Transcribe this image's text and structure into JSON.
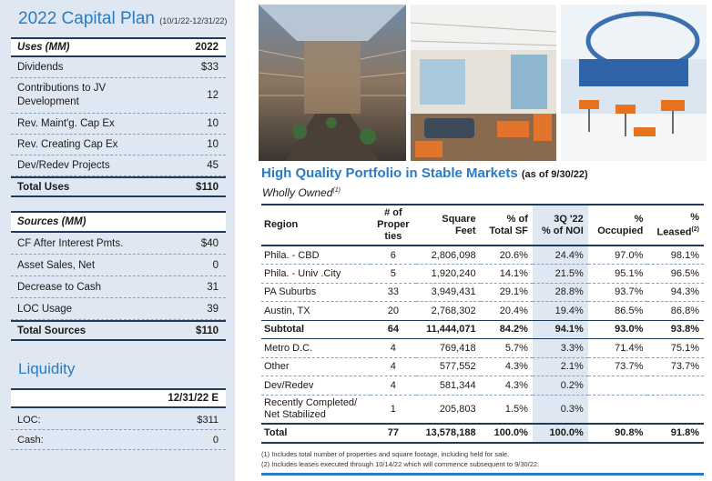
{
  "capital_plan": {
    "title": "2022 Capital Plan",
    "date_range": "(10/1/22-12/31/22)",
    "uses_header": {
      "label": "Uses (MM)",
      "year": "2022"
    },
    "uses": [
      {
        "label": "Dividends",
        "value": "$33"
      },
      {
        "label": "Contributions to JV Development",
        "value": "12"
      },
      {
        "label": "Rev. Maint'g. Cap Ex",
        "value": "10"
      },
      {
        "label": "Rev. Creating Cap Ex",
        "value": "10"
      },
      {
        "label": "Dev/Redev Projects",
        "value": "45"
      }
    ],
    "uses_total": {
      "label": "Total Uses",
      "value": "$110"
    },
    "sources_header": {
      "label": "Sources (MM)"
    },
    "sources": [
      {
        "label": "CF After Interest Pmts.",
        "value": "$40"
      },
      {
        "label": "Asset Sales, Net",
        "value": "0"
      },
      {
        "label": "Decrease to Cash",
        "value": "31"
      },
      {
        "label": "LOC Usage",
        "value": "39"
      }
    ],
    "sources_total": {
      "label": "Total Sources",
      "value": "$110"
    }
  },
  "liquidity": {
    "title": "Liquidity",
    "date": "12/31/22 E",
    "rows": [
      {
        "label": "LOC:",
        "value": "$311"
      },
      {
        "label": "Cash:",
        "value": "0"
      }
    ]
  },
  "portfolio": {
    "title": "High Quality Portfolio in Stable Markets",
    "as_of": "(as of 9/30/22)",
    "subtitle": "Wholly Owned",
    "subtitle_note": "(1)",
    "headers": {
      "region": "Region",
      "props_1": "# of",
      "props_2": "Proper",
      "props_3": "ties",
      "sqft_1": "Square",
      "sqft_2": "Feet",
      "pct_sf_1": "% of",
      "pct_sf_2": "Total SF",
      "noi_1": "3Q '22",
      "noi_2": "% of NOI",
      "occ_1": "%",
      "occ_2": "Occupied",
      "leased_1": "%",
      "leased_2": "Leased",
      "leased_note": "(2)"
    },
    "rows": [
      {
        "region": "Phila. - CBD",
        "props": "6",
        "sqft": "2,806,098",
        "pct_sf": "20.6%",
        "noi": "24.4%",
        "occ": "97.0%",
        "leased": "98.1%"
      },
      {
        "region": "Phila. - Univ .City",
        "props": "5",
        "sqft": "1,920,240",
        "pct_sf": "14.1%",
        "noi": "21.5%",
        "occ": "95.1%",
        "leased": "96.5%"
      },
      {
        "region": "PA Suburbs",
        "props": "33",
        "sqft": "3,949,431",
        "pct_sf": "29.1%",
        "noi": "28.8%",
        "occ": "93.7%",
        "leased": "94.3%"
      },
      {
        "region": "Austin, TX",
        "props": "20",
        "sqft": "2,768,302",
        "pct_sf": "20.4%",
        "noi": "19.4%",
        "occ": "86.5%",
        "leased": "86.8%"
      }
    ],
    "subtotal": {
      "region": "Subtotal",
      "props": "64",
      "sqft": "11,444,071",
      "pct_sf": "84.2%",
      "noi": "94.1%",
      "occ": "93.0%",
      "leased": "93.8%"
    },
    "rows2": [
      {
        "region": "Metro D.C.",
        "props": "4",
        "sqft": "769,418",
        "pct_sf": "5.7%",
        "noi": "3.3%",
        "occ": "71.4%",
        "leased": "75.1%"
      },
      {
        "region": "Other",
        "props": "4",
        "sqft": "577,552",
        "pct_sf": "4.3%",
        "noi": "2.1%",
        "occ": "73.7%",
        "leased": "73.7%"
      },
      {
        "region": "Dev/Redev",
        "props": "4",
        "sqft": "581,344",
        "pct_sf": "4.3%",
        "noi": "0.2%",
        "occ": "",
        "leased": ""
      }
    ],
    "recent": {
      "region_1": "Recently Completed/",
      "region_2": "Net Stabilized",
      "props": "1",
      "sqft": "205,803",
      "pct_sf": "1.5%",
      "noi": "0.3%",
      "occ": "",
      "leased": ""
    },
    "total": {
      "region": "Total",
      "props": "77",
      "sqft": "13,578,188",
      "pct_sf": "100.0%",
      "noi": "100.0%",
      "occ": "90.8%",
      "leased": "91.8%"
    },
    "footnotes": [
      "(1) Includes total number of properties and square footage, including held for sale.",
      "(2) Includes leases executed through 10/14/22 which will commence subsequent to 9/30/22."
    ]
  },
  "colors": {
    "accent": "#2a7bc2",
    "panel": "#dfe8f2",
    "rule": "#1f3b5a"
  }
}
